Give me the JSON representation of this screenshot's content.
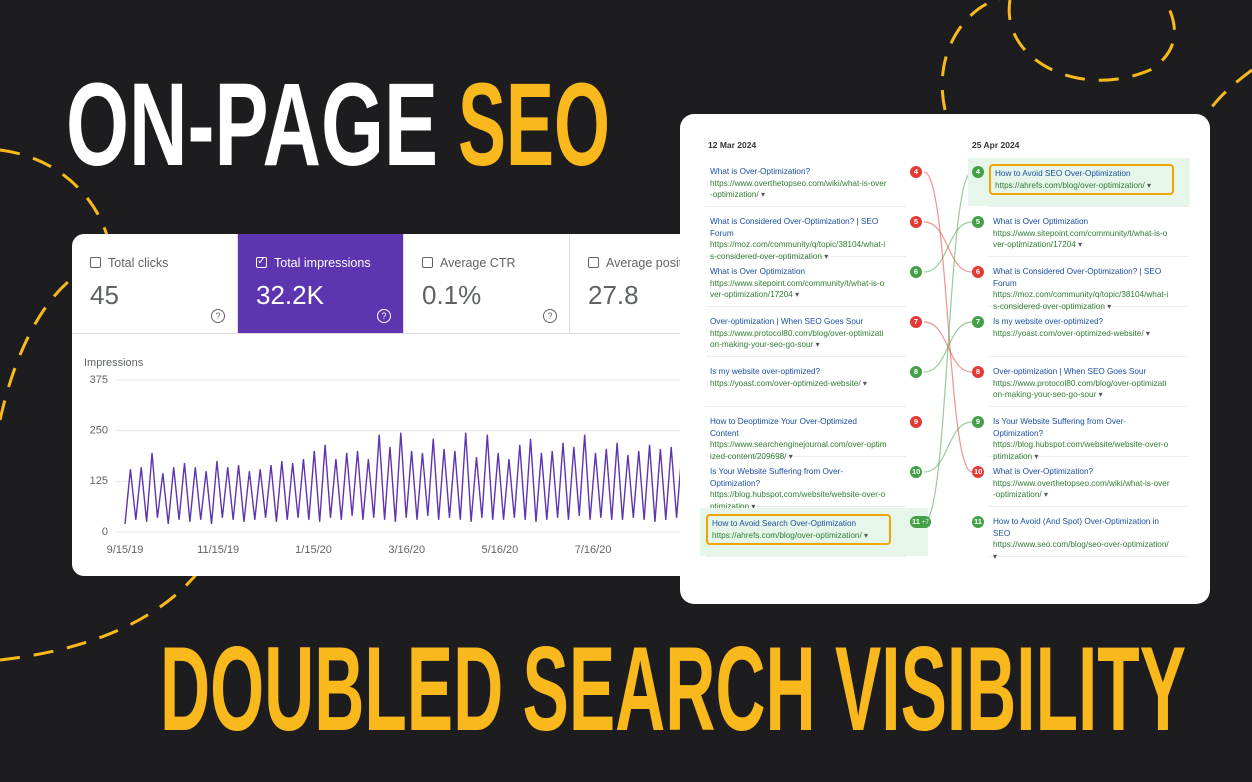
{
  "headline": {
    "line1": "ON-PAGE",
    "line1_highlight": "SEO",
    "line2": "DOUBLED SEARCH VISIBILITY"
  },
  "metrics": [
    {
      "label": "Total clicks",
      "value": "45",
      "selected": false
    },
    {
      "label": "Total impressions",
      "value": "32.2K",
      "selected": true
    },
    {
      "label": "Average CTR",
      "value": "0.1%",
      "selected": false
    },
    {
      "label": "Average position",
      "value": "27.8",
      "selected": false
    }
  ],
  "chart_data": {
    "type": "line",
    "ylabel": "Impressions",
    "color": "#5e35b1",
    "values": [
      20,
      155,
      30,
      160,
      25,
      195,
      35,
      145,
      20,
      160,
      30,
      170,
      25,
      160,
      30,
      150,
      20,
      175,
      35,
      160,
      30,
      165,
      25,
      150,
      30,
      155,
      35,
      165,
      25,
      175,
      30,
      170,
      35,
      180,
      30,
      200,
      25,
      215,
      35,
      180,
      30,
      195,
      40,
      200,
      30,
      180,
      35,
      240,
      30,
      210,
      25,
      245,
      35,
      200,
      30,
      195,
      40,
      230,
      30,
      205,
      35,
      200,
      30,
      245,
      25,
      185,
      35,
      240,
      30,
      195,
      30,
      180,
      35,
      215,
      30,
      230,
      25,
      195,
      30,
      200,
      35,
      220,
      30,
      210,
      40,
      240,
      30,
      195,
      35,
      205,
      30,
      220,
      30,
      190,
      35,
      200,
      30,
      215,
      25,
      205,
      30,
      210,
      35,
      200
    ],
    "xlim": [
      0,
      104
    ],
    "xticks": [
      {
        "value": 0,
        "label": "9/15/19"
      },
      {
        "value": 17.4,
        "label": "11/15/19"
      },
      {
        "value": 35.2,
        "label": "1/15/20"
      },
      {
        "value": 52.6,
        "label": "3/16/20"
      },
      {
        "value": 70.0,
        "label": "5/16/20"
      },
      {
        "value": 87.4,
        "label": "7/16/20"
      }
    ],
    "ylim": [
      0,
      375
    ],
    "yticks": [
      0,
      125,
      250,
      375
    ],
    "grid": true
  },
  "serp": {
    "before": {
      "date": "12 Mar 2024",
      "results": [
        {
          "rank": "4",
          "color": "#e53935",
          "title": "What is Over-Optimization?",
          "url": "https://www.overthetopseo.com/wiki/what-is-over-optimization/"
        },
        {
          "rank": "5",
          "color": "#e53935",
          "title": "What is Considered Over-Optimization? | SEO Forum",
          "url": "https://moz.com/community/q/topic/38104/what-is-considered-over-optimization"
        },
        {
          "rank": "6",
          "color": "#43a047",
          "title": "What is Over Optimization",
          "url": "https://www.sitepoint.com/community/t/what-is-over-optimization/17204"
        },
        {
          "rank": "7",
          "color": "#e53935",
          "title": "Over-optimization | When SEO Goes Sour",
          "url": "https://www.protocol80.com/blog/over-optimization-making-your-seo-go-sour"
        },
        {
          "rank": "8",
          "color": "#43a047",
          "title": "Is my website over-optimized?",
          "url": "https://yoast.com/over-optimized-website/"
        },
        {
          "rank": "9",
          "color": "#e53935",
          "title": "How to Deoptimize Your Over-Optimized Content",
          "url": "https://www.searchenginejournal.com/over-optimized-content/209698/"
        },
        {
          "rank": "10",
          "color": "#43a047",
          "title": "Is Your Website Suffering from Over-Optimization?",
          "url": "https://blog.hubspot.com/website/website-over-optimization"
        },
        {
          "rank": "11",
          "change": "+7",
          "color": "#43a047",
          "highlight": true,
          "title": "How to Avoid Search Over-Optimization",
          "url": "https://ahrefs.com/blog/over-optimization/"
        }
      ]
    },
    "after": {
      "date": "25 Apr 2024",
      "results": [
        {
          "rank": "4",
          "color": "#43a047",
          "highlight": true,
          "title": "How to Avoid SEO Over-Optimization",
          "url": "https://ahrefs.com/blog/over-optimization/"
        },
        {
          "rank": "5",
          "color": "#43a047",
          "title": "What is Over Optimization",
          "url": "https://www.sitepoint.com/community/t/what-is-over-optimization/17204"
        },
        {
          "rank": "6",
          "color": "#e53935",
          "title": "What is Considered Over-Optimization? | SEO Forum",
          "url": "https://moz.com/community/q/topic/38104/what-is-considered-over-optimization"
        },
        {
          "rank": "7",
          "color": "#43a047",
          "title": "Is my website over-optimized?",
          "url": "https://yoast.com/over-optimized-website/"
        },
        {
          "rank": "8",
          "color": "#e53935",
          "title": "Over-optimization | When SEO Goes Sour",
          "url": "https://www.protocol80.com/blog/over-optimization-making-your-seo-go-sour"
        },
        {
          "rank": "9",
          "color": "#43a047",
          "title": "Is Your Website Suffering from Over-Optimization?",
          "url": "https://blog.hubspot.com/website/website-over-optimization"
        },
        {
          "rank": "10",
          "color": "#e53935",
          "title": "What is Over-Optimization?",
          "url": "https://www.overthetopseo.com/wiki/what-is-over-optimization/"
        },
        {
          "rank": "11",
          "color": "#43a047",
          "title": "How to Avoid (And Spot) Over-Optimization in SEO",
          "url": "https://www.seo.com/blog/seo-over-optimization/"
        }
      ]
    }
  }
}
